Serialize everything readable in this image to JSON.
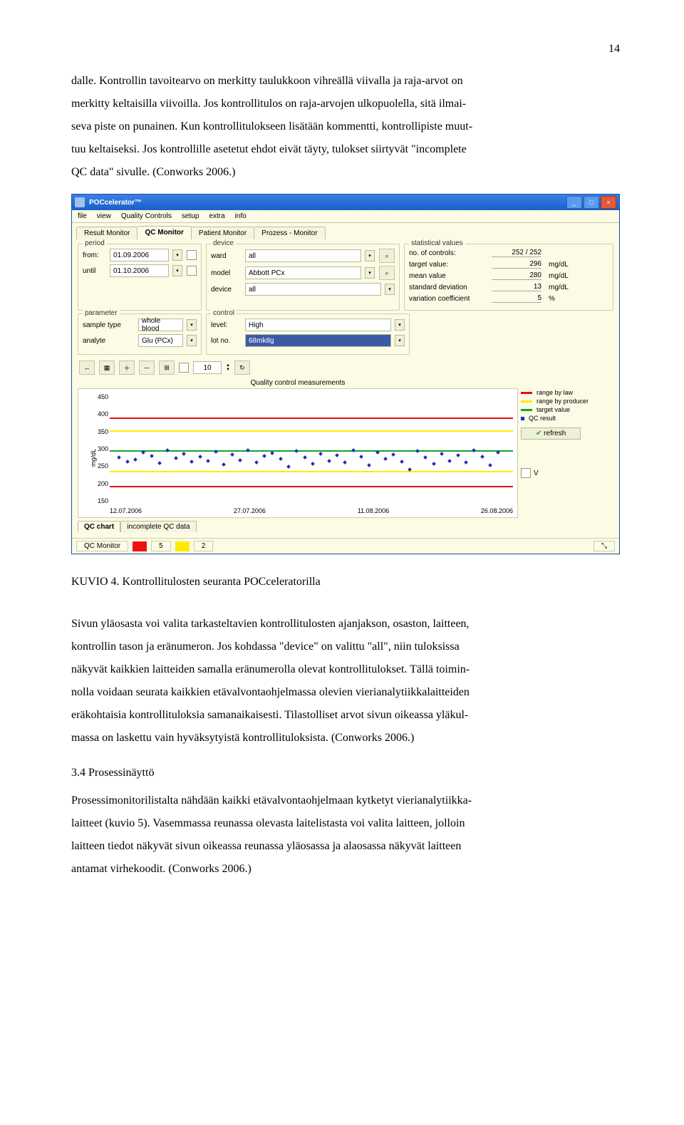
{
  "pageNumber": "14",
  "text": {
    "p1a": "dalle. Kontrollin tavoitearvo on merkitty taulukkoon vihreällä viivalla ja raja-arvot on",
    "p1b": "merkitty keltaisilla viivoilla. Jos kontrollitulos on raja-arvojen ulkopuolella, sitä ilmai-",
    "p1c": "seva piste on punainen. Kun kontrollitulokseen lisätään kommentti, kontrollipiste muut-",
    "p1d": "tuu keltaiseksi. Jos kontrollille asetetut ehdot eivät täyty, tulokset siirtyvät \"incomplete",
    "p1e": "QC data\" sivulle. (Conworks 2006.)",
    "caption": "KUVIO 4. Kontrollitulosten seuranta POCceleratorilla",
    "p2a": "Sivun yläosasta voi valita tarkasteltavien kontrollitulosten ajanjakson, osaston, laitteen,",
    "p2b": "kontrollin tason ja eränumeron. Jos kohdassa \"device\" on valittu \"all\", niin tuloksissa",
    "p2c": "näkyvät kaikkien laitteiden samalla eränumerolla olevat kontrollitulokset. Tällä toimin-",
    "p2d": "nolla voidaan seurata kaikkien etävalvontaohjelmassa olevien vierianalytiikkalaitteiden",
    "p2e": "eräkohtaisia kontrollituloksia samanaikaisesti. Tilastolliset arvot sivun oikeassa yläkul-",
    "p2f": "massa on laskettu vain hyväksytyistä kontrollituloksista. (Conworks 2006.)",
    "h34": "3.4 Prosessinäyttö",
    "p3a": "Prosessimonitorilistalta nähdään kaikki etävalvontaohjelmaan kytketyt vierianalytiikka-",
    "p3b": "laitteet (kuvio 5). Vasemmassa reunassa olevasta laitelistasta voi valita laitteen, jolloin",
    "p3c": "laitteen tiedot näkyvät sivun oikeassa reunassa yläosassa ja alaosassa näkyvät laitteen",
    "p3d": "antamat virhekoodit. (Conworks 2006.)"
  },
  "app": {
    "title": "POCcelerator™",
    "menu": [
      "file",
      "view",
      "Quality Controls",
      "setup",
      "extra",
      "info"
    ],
    "tabs": [
      "Result Monitor",
      "QC Monitor",
      "Patient Monitor",
      "Prozess - Monitor"
    ],
    "activeTab": 1,
    "period": {
      "legend": "period",
      "fromLbl": "from:",
      "from": "01.09.2006",
      "untilLbl": "until",
      "until": "01.10.2006"
    },
    "device": {
      "legend": "device",
      "wardLbl": "ward",
      "ward": "all",
      "modelLbl": "model",
      "model": "Abbott PCx",
      "deviceLbl": "device",
      "deviceV": "all"
    },
    "stats": {
      "legend": "statistical values",
      "items": [
        {
          "l": "no. of controls:",
          "v": "252 / 252",
          "u": ""
        },
        {
          "l": "target value:",
          "v": "296",
          "u": "mg/dL"
        },
        {
          "l": "mean value",
          "v": "280",
          "u": "mg/dL"
        },
        {
          "l": "standard deviation",
          "v": "13",
          "u": "mg/dL"
        },
        {
          "l": "variation coefficient",
          "v": "5",
          "u": "%"
        }
      ]
    },
    "param": {
      "legend": "parameter",
      "stLbl": "sample type",
      "st": "whole blood",
      "anLbl": "analyte",
      "an": "Glu (PCx)"
    },
    "ctrl": {
      "legend": "control",
      "lvlLbl": "level:",
      "lvl": "High",
      "lotLbl": "lot no.",
      "lot": "68mk8g"
    },
    "chart": {
      "title": "Quality control measurements",
      "ylabel": "mg/dL",
      "yticks": [
        "450",
        "400",
        "350",
        "300",
        "250",
        "200",
        "150"
      ],
      "ymin": 150,
      "ymax": 450,
      "xticks": [
        "12.07.2006",
        "27.07.2006",
        "11.08.2006",
        "26.08.2006"
      ],
      "lines": {
        "law": {
          "label": "range by law",
          "color": "#e11313",
          "yTop": 385,
          "yBot": 200
        },
        "prod": {
          "label": "range by producer",
          "color": "#ffeb00",
          "yTop": 350,
          "yBot": 240
        },
        "target": {
          "label": "target value",
          "color": "#17a22d",
          "y": 296
        },
        "qc": {
          "label": "QC result",
          "color": "#1830b0"
        }
      },
      "points": [
        [
          2,
          280
        ],
        [
          4,
          270
        ],
        [
          6,
          275
        ],
        [
          8,
          295
        ],
        [
          10,
          285
        ],
        [
          12,
          265
        ],
        [
          14,
          300
        ],
        [
          16,
          278
        ],
        [
          18,
          290
        ],
        [
          20,
          270
        ],
        [
          22,
          282
        ],
        [
          24,
          272
        ],
        [
          26,
          296
        ],
        [
          28,
          262
        ],
        [
          30,
          288
        ],
        [
          32,
          274
        ],
        [
          34,
          300
        ],
        [
          36,
          268
        ],
        [
          38,
          284
        ],
        [
          40,
          292
        ],
        [
          42,
          276
        ],
        [
          44,
          255
        ],
        [
          46,
          298
        ],
        [
          48,
          280
        ],
        [
          50,
          264
        ],
        [
          52,
          290
        ],
        [
          54,
          272
        ],
        [
          56,
          286
        ],
        [
          58,
          268
        ],
        [
          60,
          300
        ],
        [
          62,
          282
        ],
        [
          64,
          260
        ],
        [
          66,
          294
        ],
        [
          68,
          276
        ],
        [
          70,
          288
        ],
        [
          72,
          270
        ],
        [
          74,
          248
        ],
        [
          76,
          298
        ],
        [
          78,
          280
        ],
        [
          80,
          264
        ],
        [
          82,
          290
        ],
        [
          84,
          272
        ],
        [
          86,
          286
        ],
        [
          88,
          268
        ],
        [
          90,
          300
        ],
        [
          92,
          282
        ],
        [
          94,
          260
        ],
        [
          96,
          294
        ]
      ],
      "refresh": "refresh",
      "vflag": "V"
    },
    "subtabs": [
      "QC chart",
      "incomplete QC data"
    ],
    "status": {
      "label": "QC Monitor",
      "red": "5",
      "yellow": "2"
    }
  }
}
